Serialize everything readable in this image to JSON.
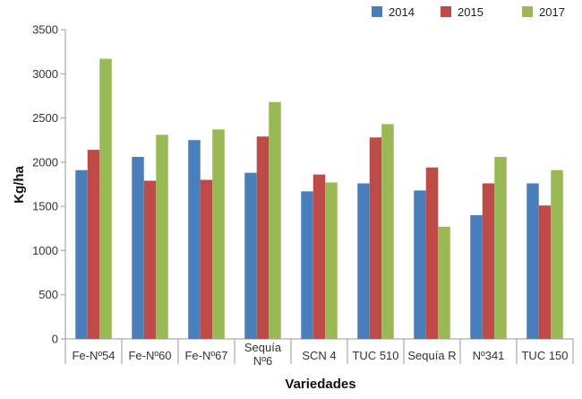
{
  "chart_data": {
    "type": "bar",
    "title": "",
    "xlabel": "Variedades",
    "ylabel": "Kg/ha",
    "ylim": [
      0,
      3500
    ],
    "yticks": [
      "0",
      "500",
      "1000",
      "1500",
      "2000",
      "2500",
      "3000",
      "3500"
    ],
    "grid": false,
    "legend_position": "top-right",
    "categories": [
      [
        "Fe-Nº54"
      ],
      [
        "Fe-Nº60"
      ],
      [
        "Fe-Nº67"
      ],
      [
        "Sequía",
        "Nº6"
      ],
      [
        "SCN 4"
      ],
      [
        "TUC 510"
      ],
      [
        "Sequía R"
      ],
      [
        "Nº341"
      ],
      [
        "TUC 150"
      ]
    ],
    "series": [
      {
        "name": "2014",
        "color": "#4a7ebb",
        "values": [
          1910,
          2060,
          2250,
          1880,
          1670,
          1760,
          1680,
          1400,
          1760
        ]
      },
      {
        "name": "2015",
        "color": "#be4b48",
        "values": [
          2140,
          1790,
          1800,
          2290,
          1860,
          2280,
          1940,
          1760,
          1510
        ]
      },
      {
        "name": "2017",
        "color": "#98b954",
        "values": [
          3170,
          2310,
          2370,
          2680,
          1770,
          2430,
          1270,
          2060,
          1910
        ]
      }
    ]
  }
}
